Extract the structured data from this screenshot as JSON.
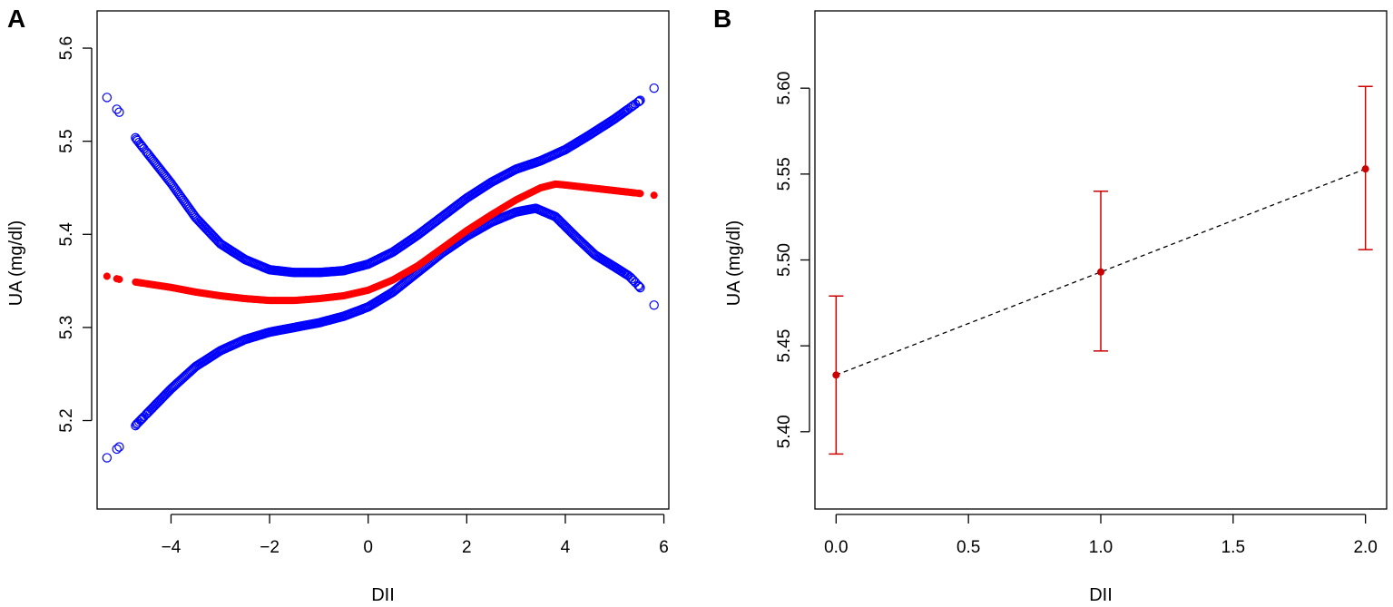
{
  "chart_data": [
    {
      "panel_label": "A",
      "type": "scatter",
      "xlabel": "DII",
      "ylabel": "UA (mg/dl)",
      "xlim": [
        -5.5,
        6.1
      ],
      "ylim": [
        5.105,
        5.64
      ],
      "x_ticks": [
        "−4",
        "−2",
        "0",
        "2",
        "4",
        "6"
      ],
      "x_tick_values": [
        -4,
        -2,
        0,
        2,
        4,
        6
      ],
      "y_ticks": [
        "5.2",
        "5.3",
        "5.4",
        "5.5",
        "5.6"
      ],
      "y_tick_values": [
        5.2,
        5.3,
        5.4,
        5.5,
        5.6
      ],
      "x_range": [
        -5.3,
        5.8
      ],
      "series": [
        {
          "role": "estimate",
          "marker": "filled-circle",
          "color": "#ff0000",
          "points": [
            [
              -5.3,
              5.355
            ],
            [
              -5.0,
              5.351
            ],
            [
              -4.5,
              5.347
            ],
            [
              -4.0,
              5.343
            ],
            [
              -3.5,
              5.338
            ],
            [
              -3.0,
              5.334
            ],
            [
              -2.5,
              5.331
            ],
            [
              -2.0,
              5.329
            ],
            [
              -1.5,
              5.329
            ],
            [
              -1.0,
              5.331
            ],
            [
              -0.5,
              5.334
            ],
            [
              0.0,
              5.34
            ],
            [
              0.5,
              5.351
            ],
            [
              1.0,
              5.366
            ],
            [
              1.5,
              5.385
            ],
            [
              2.0,
              5.404
            ],
            [
              2.5,
              5.421
            ],
            [
              3.0,
              5.437
            ],
            [
              3.5,
              5.45
            ],
            [
              3.8,
              5.454
            ],
            [
              4.0,
              5.453
            ],
            [
              4.5,
              5.45
            ],
            [
              5.0,
              5.447
            ],
            [
              5.5,
              5.444
            ],
            [
              5.8,
              5.442
            ]
          ]
        },
        {
          "role": "upper-ci",
          "marker": "open-circle",
          "color": "#0000ff",
          "points": [
            [
              -5.3,
              5.547
            ],
            [
              -5.0,
              5.528
            ],
            [
              -4.7,
              5.502
            ],
            [
              -4.0,
              5.455
            ],
            [
              -3.5,
              5.418
            ],
            [
              -3.0,
              5.39
            ],
            [
              -2.5,
              5.373
            ],
            [
              -2.0,
              5.362
            ],
            [
              -1.5,
              5.359
            ],
            [
              -1.0,
              5.359
            ],
            [
              -0.5,
              5.361
            ],
            [
              0.0,
              5.368
            ],
            [
              0.5,
              5.381
            ],
            [
              1.0,
              5.399
            ],
            [
              1.5,
              5.419
            ],
            [
              2.0,
              5.439
            ],
            [
              2.5,
              5.456
            ],
            [
              3.0,
              5.47
            ],
            [
              3.5,
              5.479
            ],
            [
              4.0,
              5.491
            ],
            [
              4.5,
              5.507
            ],
            [
              5.0,
              5.524
            ],
            [
              5.5,
              5.543
            ],
            [
              5.8,
              5.557
            ]
          ]
        },
        {
          "role": "lower-ci",
          "marker": "open-circle",
          "color": "#0000ff",
          "points": [
            [
              -5.3,
              5.16
            ],
            [
              -5.0,
              5.174
            ],
            [
              -4.7,
              5.196
            ],
            [
              -4.0,
              5.234
            ],
            [
              -3.5,
              5.258
            ],
            [
              -3.0,
              5.275
            ],
            [
              -2.5,
              5.287
            ],
            [
              -2.0,
              5.295
            ],
            [
              -1.5,
              5.3
            ],
            [
              -1.0,
              5.305
            ],
            [
              -0.5,
              5.312
            ],
            [
              0.0,
              5.322
            ],
            [
              0.5,
              5.338
            ],
            [
              1.0,
              5.359
            ],
            [
              1.5,
              5.38
            ],
            [
              2.0,
              5.398
            ],
            [
              2.5,
              5.413
            ],
            [
              3.0,
              5.424
            ],
            [
              3.4,
              5.428
            ],
            [
              3.8,
              5.419
            ],
            [
              4.2,
              5.398
            ],
            [
              4.6,
              5.378
            ],
            [
              5.0,
              5.365
            ],
            [
              5.3,
              5.355
            ],
            [
              5.5,
              5.344
            ],
            [
              5.8,
              5.324
            ]
          ]
        }
      ]
    },
    {
      "panel_label": "B",
      "type": "line",
      "xlabel": "DII",
      "ylabel": "UA (mg/dl)",
      "xlim": [
        -0.08,
        2.08
      ],
      "ylim": [
        5.355,
        5.645
      ],
      "x_ticks": [
        "0.0",
        "0.5",
        "1.0",
        "1.5",
        "2.0"
      ],
      "x_tick_values": [
        0,
        0.5,
        1,
        1.5,
        2
      ],
      "y_ticks": [
        "5.40",
        "5.45",
        "5.50",
        "5.55",
        "5.60"
      ],
      "y_tick_values": [
        5.4,
        5.45,
        5.5,
        5.55,
        5.6
      ],
      "series": [
        {
          "line_style": "dashed",
          "line_color": "#000000",
          "marker_color": "#cc0000",
          "errorbar_color": "#cc0000",
          "points": [
            {
              "x": 0,
              "y": 5.433,
              "lower": 5.387,
              "upper": 5.479
            },
            {
              "x": 1,
              "y": 5.493,
              "lower": 5.447,
              "upper": 5.54
            },
            {
              "x": 2,
              "y": 5.553,
              "lower": 5.506,
              "upper": 5.601
            }
          ]
        }
      ]
    }
  ]
}
